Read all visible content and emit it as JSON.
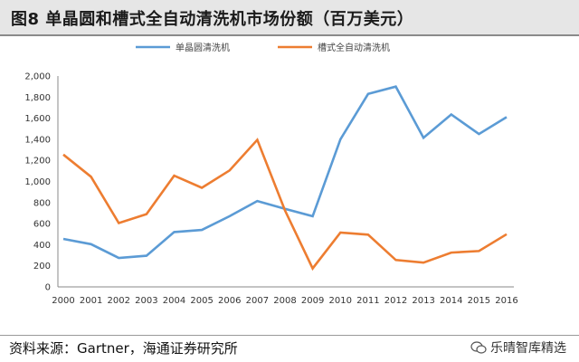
{
  "header": {
    "title": "图8  单晶圆和槽式全自动清洗机市场份额（百万美元）"
  },
  "footer": {
    "source": "资料来源：Gartner，海通证券研究所",
    "brand": "乐晴智库精选"
  },
  "chart_data": {
    "type": "line",
    "title": "图8  单晶圆和槽式全自动清洗机市场份额（百万美元）",
    "xlabel": "",
    "ylabel": "",
    "categories": [
      "2000",
      "2001",
      "2002",
      "2003",
      "2004",
      "2005",
      "2006",
      "2007",
      "2008",
      "2009",
      "2010",
      "2011",
      "2012",
      "2013",
      "2014",
      "2015",
      "2016"
    ],
    "ylim": [
      0,
      2000
    ],
    "yticks": [
      0,
      200,
      400,
      600,
      800,
      1000,
      1200,
      1400,
      1600,
      1800,
      2000
    ],
    "ytick_labels": [
      "0",
      "200",
      "400",
      "600",
      "800",
      "1,000",
      "1,200",
      "1,400",
      "1,600",
      "1,800",
      "2,000"
    ],
    "grid": false,
    "legend": "top",
    "series": [
      {
        "name": "单晶圆清洗机",
        "color": "#5b9bd5",
        "values": [
          455,
          405,
          275,
          295,
          520,
          540,
          670,
          815,
          740,
          670,
          1400,
          1830,
          1900,
          1415,
          1635,
          1450,
          1610
        ]
      },
      {
        "name": "槽式全自动清洗机",
        "color": "#ed7d31",
        "values": [
          1255,
          1045,
          605,
          690,
          1055,
          940,
          1105,
          1395,
          725,
          175,
          515,
          495,
          255,
          230,
          325,
          340,
          500
        ]
      }
    ]
  }
}
